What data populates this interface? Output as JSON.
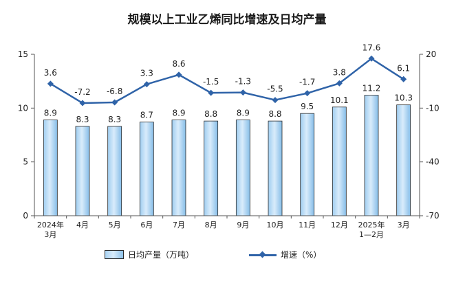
{
  "chart_data": {
    "type": "bar+line",
    "title": "规模以上工业乙烯同比增速及日均产量",
    "categories": [
      [
        "2024年",
        "3月"
      ],
      [
        "4月"
      ],
      [
        "5月"
      ],
      [
        "6月"
      ],
      [
        "7月"
      ],
      [
        "8月"
      ],
      [
        "9月"
      ],
      [
        "10月"
      ],
      [
        "11月"
      ],
      [
        "12月"
      ],
      [
        "2025年",
        "1—2月"
      ],
      [
        "3月"
      ]
    ],
    "series": [
      {
        "name": "日均产量（万吨）",
        "type": "bar",
        "axis": "left",
        "values": [
          8.9,
          8.3,
          8.3,
          8.7,
          8.9,
          8.8,
          8.9,
          8.8,
          9.5,
          10.1,
          11.2,
          10.3
        ],
        "labels": [
          "8.9",
          "8.3",
          "8.3",
          "8.7",
          "8.9",
          "8.8",
          "8.9",
          "8.8",
          "9.5",
          "10.1",
          "11.2",
          "10.3"
        ]
      },
      {
        "name": "增速（%）",
        "type": "line",
        "axis": "right",
        "values": [
          3.6,
          -7.2,
          -6.8,
          3.3,
          8.6,
          -1.5,
          -1.3,
          -5.5,
          -1.7,
          3.8,
          17.6,
          6.1
        ],
        "labels": [
          "3.6",
          "-7.2",
          "-6.8",
          "3.3",
          "8.6",
          "-1.5",
          "-1.3",
          "-5.5",
          "-1.7",
          "3.8",
          "17.6",
          "6.1"
        ]
      }
    ],
    "left_axis": {
      "range": [
        0,
        15
      ],
      "ticks": [
        0,
        5,
        10,
        15
      ],
      "tick_labels": [
        "0",
        "5",
        "10",
        "15"
      ]
    },
    "right_axis": {
      "range": [
        -70,
        20
      ],
      "ticks": [
        -70,
        -40,
        -10,
        20
      ],
      "tick_labels": [
        "-70",
        "-40",
        "-10",
        "20"
      ]
    },
    "grid": false,
    "legend_position": "bottom",
    "colors": {
      "bar_fill": "#bfe0f8",
      "bar_edge": "#8ec2ea",
      "bar_stroke": "#2a2a2a",
      "line": "#2f63a8",
      "axis": "#555555",
      "text": "#222222"
    }
  }
}
